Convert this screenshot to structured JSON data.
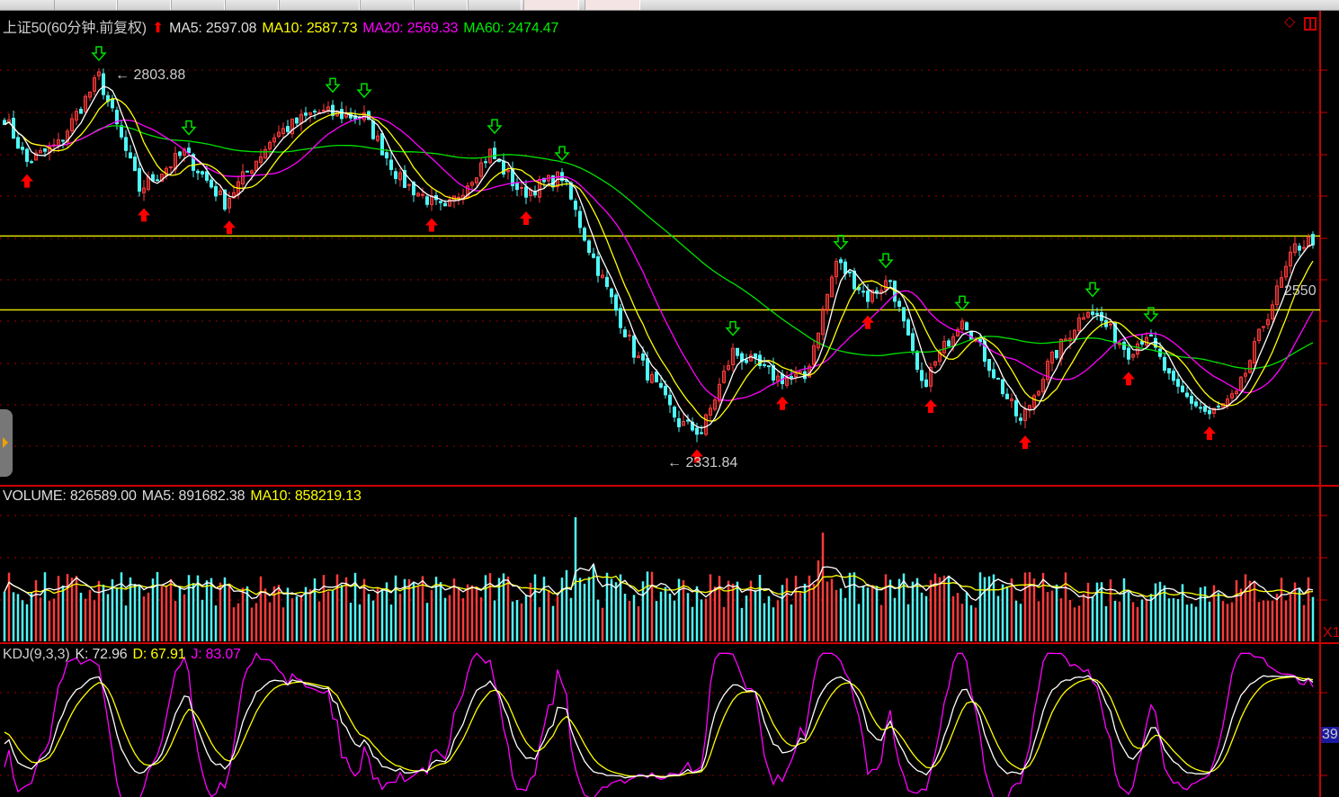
{
  "header": {
    "symbol": "上证50(60分钟.前复权)",
    "ma5": "MA5: 2597.08",
    "ma10": "MA10: 2587.73",
    "ma20": "MA20: 2569.33",
    "ma60": "MA60: 2474.47"
  },
  "volume_header": {
    "volume": "VOLUME: 826589.00",
    "ma5": "MA5: 891682.38",
    "ma10": "MA10: 858219.13"
  },
  "kdj_header": {
    "name": "KDJ(9,3,3)",
    "k": "K: 72.96",
    "d": "D: 67.91",
    "j": "J: 83.07"
  },
  "annotations": {
    "high": "2803.88",
    "low": "2331.84"
  },
  "right_axis": {
    "price_label": "2550",
    "volume_unit": "X1",
    "kdj_label": "39"
  },
  "colors": {
    "up": "#ff3b3b",
    "down": "#4ff7f7",
    "ma5": "#ffffff",
    "ma10": "#ffff00",
    "ma20": "#ff00ff",
    "ma60": "#00e000",
    "grid": "#a00000",
    "hline": "#e0e000",
    "arrow_up": "#ff0000",
    "arrow_down": "#00e000"
  },
  "chart_data": {
    "type": "candlestick",
    "bars": 292,
    "price_range": [
      2331.84,
      2803.88
    ],
    "horizontal_lines": [
      2600.6,
      2511.5
    ],
    "close_anchors": [
      [
        0,
        2744
      ],
      [
        5,
        2690
      ],
      [
        12,
        2711
      ],
      [
        21,
        2793
      ],
      [
        30,
        2657
      ],
      [
        40,
        2701
      ],
      [
        49,
        2641
      ],
      [
        60,
        2722
      ],
      [
        69,
        2750
      ],
      [
        80,
        2744
      ],
      [
        88,
        2668
      ],
      [
        98,
        2630
      ],
      [
        108,
        2701
      ],
      [
        115,
        2652
      ],
      [
        124,
        2673
      ],
      [
        130,
        2586
      ],
      [
        140,
        2461
      ],
      [
        150,
        2375
      ],
      [
        155,
        2364
      ],
      [
        162,
        2461
      ],
      [
        172,
        2429
      ],
      [
        178,
        2429
      ],
      [
        185,
        2570
      ],
      [
        192,
        2527
      ],
      [
        197,
        2548
      ],
      [
        204,
        2418
      ],
      [
        213,
        2505
      ],
      [
        226,
        2375
      ],
      [
        232,
        2444
      ],
      [
        241,
        2516
      ],
      [
        250,
        2461
      ],
      [
        254,
        2483
      ],
      [
        260,
        2418
      ],
      [
        268,
        2385
      ],
      [
        274,
        2407
      ],
      [
        280,
        2494
      ],
      [
        287,
        2586
      ],
      [
        291,
        2597
      ]
    ],
    "volume_spikes": [
      [
        127,
        2.6
      ],
      [
        182,
        2.5
      ]
    ],
    "last": {
      "ma5": 2597.08,
      "ma10": 2587.73,
      "ma20": 2569.33,
      "ma60": 2474.47,
      "volume": 826589.0,
      "vol_ma5": 891682.38,
      "vol_ma10": 858219.13,
      "k": 72.96,
      "d": 67.91,
      "j": 83.07
    }
  }
}
